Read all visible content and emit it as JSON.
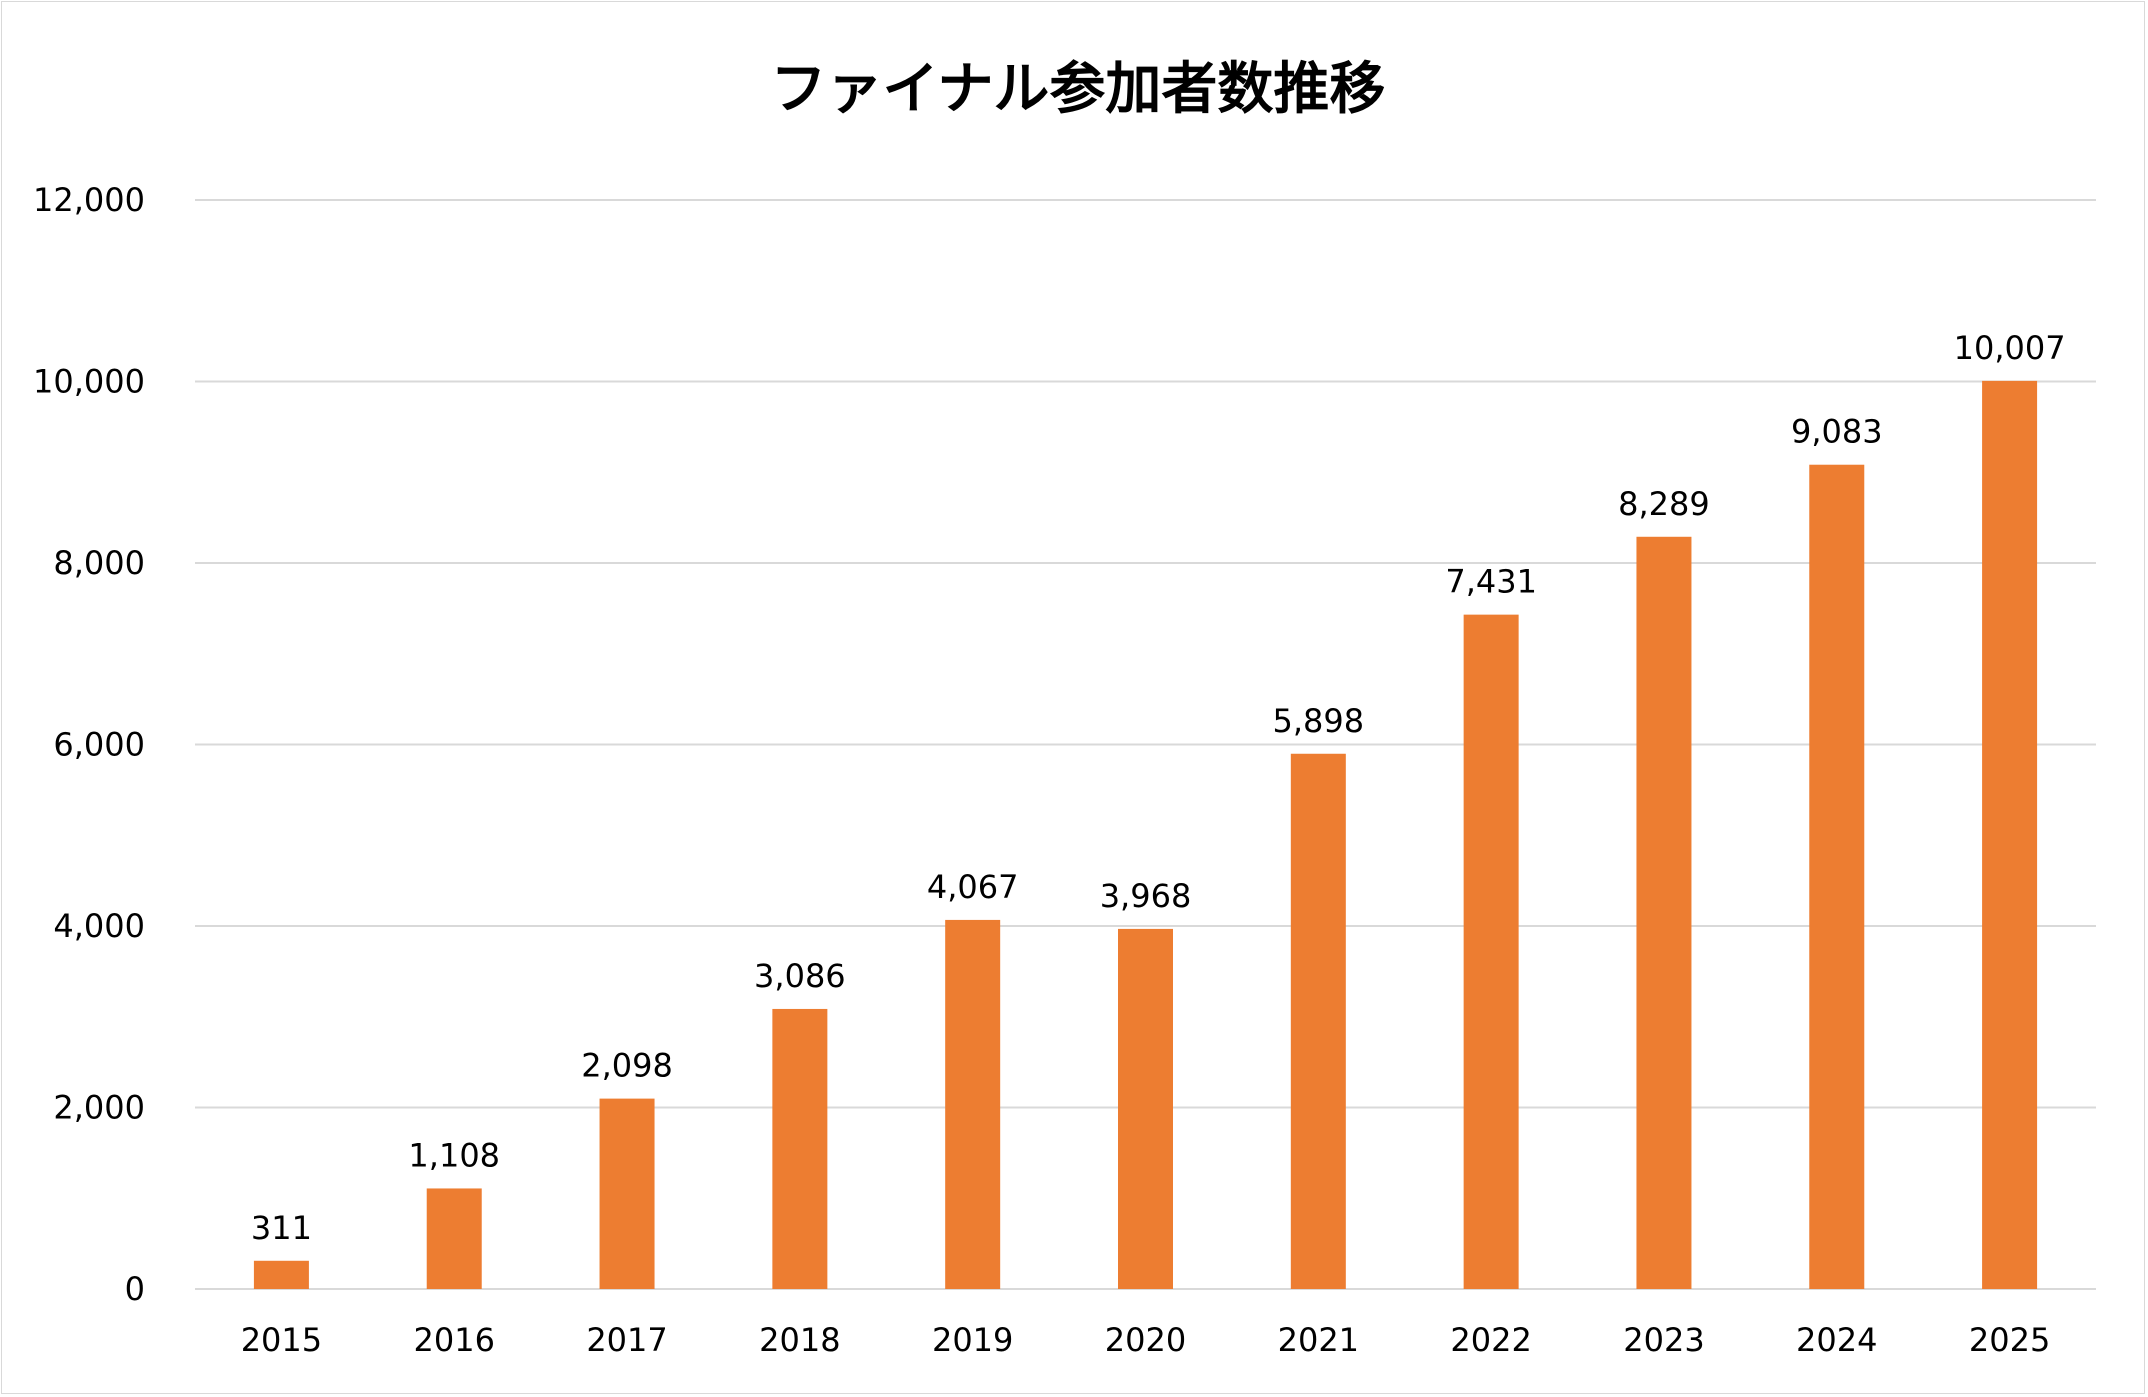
{
  "chart_data": {
    "type": "bar",
    "title": "ファイナル参加者数推移",
    "xlabel": "",
    "ylabel": "",
    "categories": [
      "2015",
      "2016",
      "2017",
      "2018",
      "2019",
      "2020",
      "2021",
      "2022",
      "2023",
      "2024",
      "2025"
    ],
    "values": [
      311,
      1108,
      2098,
      3086,
      4067,
      3968,
      5898,
      7431,
      8289,
      9083,
      10007
    ],
    "data_labels": [
      "311",
      "1,108",
      "2,098",
      "3,086",
      "4,067",
      "3,968",
      "5,898",
      "7,431",
      "8,289",
      "9,083",
      "10,007"
    ],
    "ylim": [
      0,
      12000
    ],
    "yticks": [
      0,
      2000,
      4000,
      6000,
      8000,
      10000,
      12000
    ],
    "ytick_labels": [
      "0",
      "2,000",
      "4,000",
      "6,000",
      "8,000",
      "10,000",
      "12,000"
    ],
    "grid": true,
    "legend": "none",
    "bar_color": "#ed7d31",
    "grid_color": "#d9d9d9"
  }
}
